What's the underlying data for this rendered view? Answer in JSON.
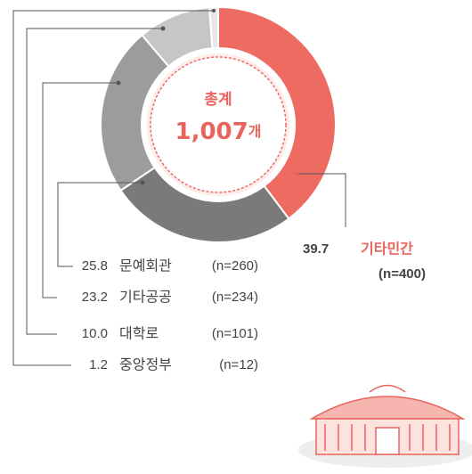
{
  "chart_data": {
    "type": "donut",
    "center_label": "총계",
    "center_value": "1,007",
    "center_unit": "개",
    "categories": [
      "기타민간",
      "문예회관",
      "기타공공",
      "대학로",
      "중앙정부"
    ],
    "values": [
      39.7,
      25.8,
      23.2,
      10.0,
      1.2
    ],
    "value_labels": [
      "39.7",
      "25.8",
      "23.2",
      "10.0",
      "1.2"
    ],
    "counts": [
      400,
      260,
      234,
      101,
      12
    ],
    "count_labels": [
      "(n=400)",
      "(n=260)",
      "(n=234)",
      "(n=101)",
      "(n=12)"
    ],
    "colors": [
      "#ee6b62",
      "#7a7a7a",
      "#9c9c9c",
      "#c6c6c6",
      "#e8e8e8"
    ]
  }
}
